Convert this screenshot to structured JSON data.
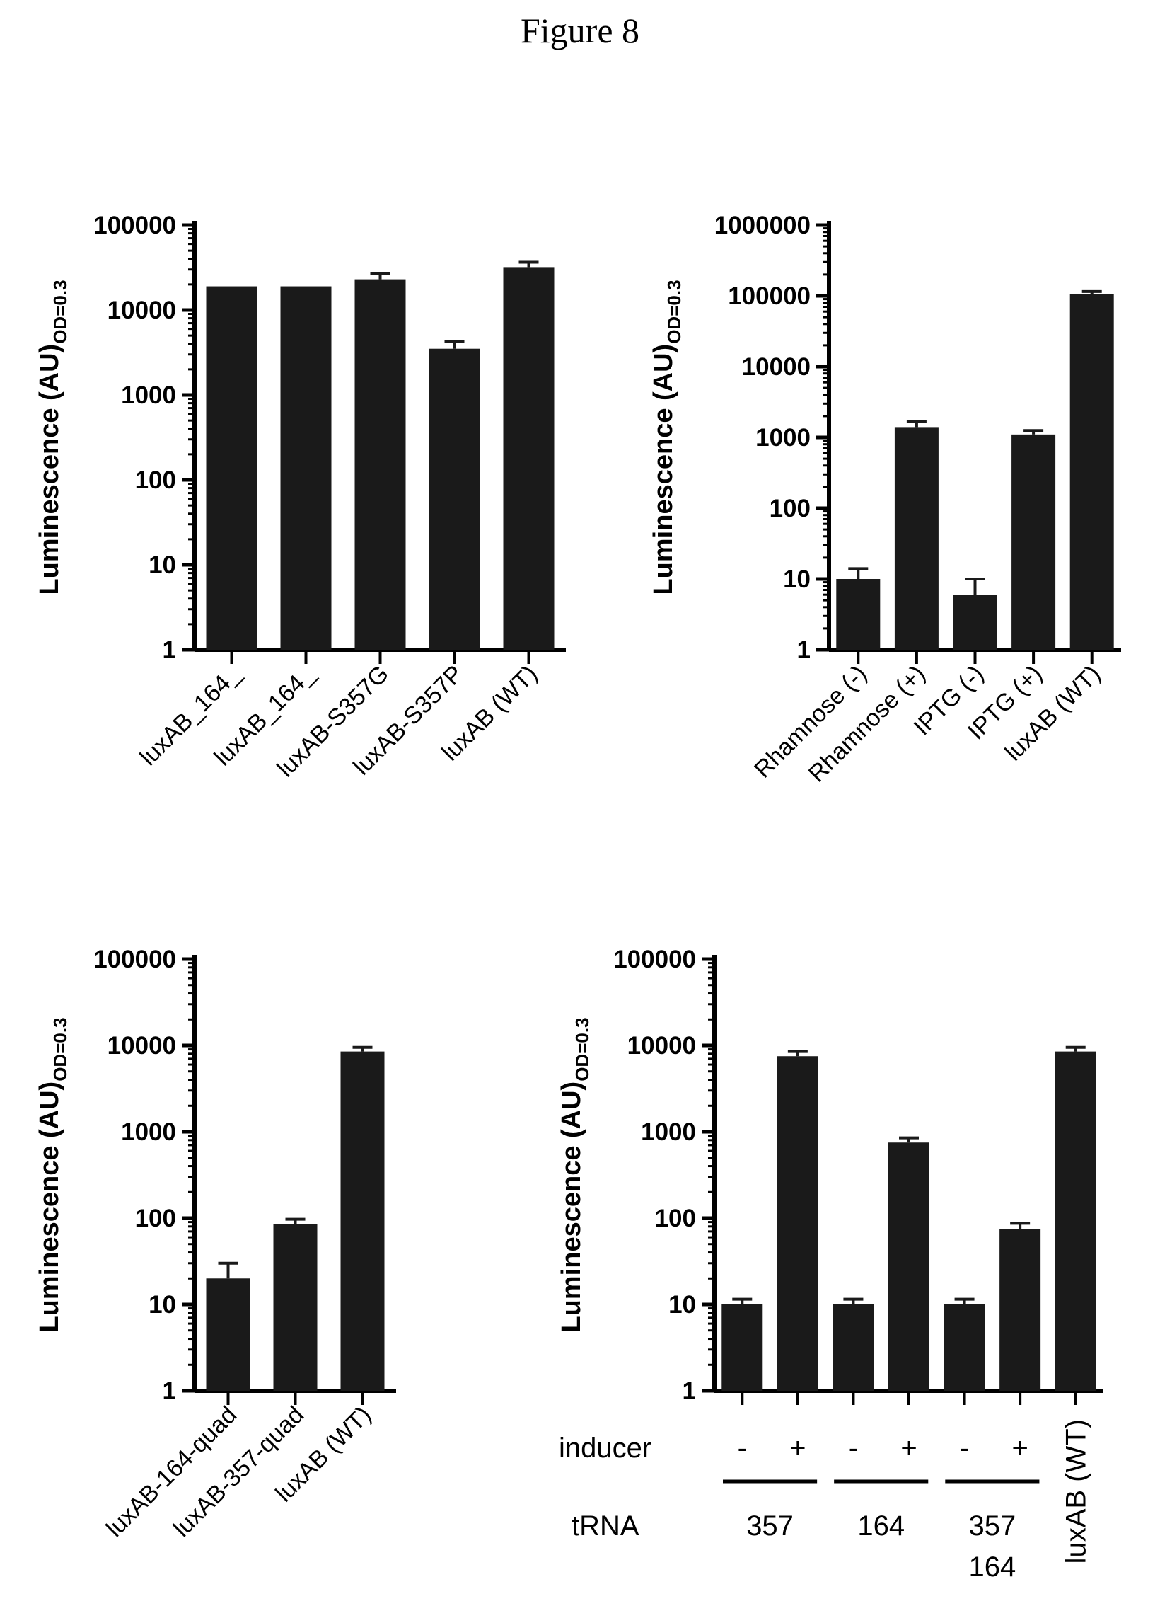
{
  "figure_title": "Figure 8",
  "chart_data": [
    {
      "type": "bar",
      "scale": "log",
      "ylabel": "Luminescence (AU)",
      "ylabel_subscript": "OD=0.3",
      "ylim": [
        1,
        100000
      ],
      "yticks": [
        "1",
        "10",
        "100",
        "1000",
        "10000",
        "100000"
      ],
      "categories": [
        "luxAB_164_",
        "luxAB_164_",
        "luxAB-S357G",
        "luxAB-S357P",
        "luxAB (WT)"
      ],
      "values": [
        19000,
        19000,
        23000,
        3500,
        32000
      ],
      "errors": [
        0,
        0,
        4000,
        800,
        4500
      ],
      "bar_color": "#1a1a1a"
    },
    {
      "type": "bar",
      "scale": "log",
      "ylabel": "Luminescence (AU)",
      "ylabel_subscript": "OD=0.3",
      "ylim": [
        1,
        1000000
      ],
      "yticks": [
        "1",
        "10",
        "100",
        "1000",
        "10000",
        "100000",
        "1000000"
      ],
      "categories": [
        "Rhamnose (-)",
        "Rhamnose (+)",
        "IPTG (-)",
        "IPTG (+)",
        "luxAB (WT)"
      ],
      "values": [
        10,
        1400,
        6,
        1100,
        105000
      ],
      "errors": [
        4,
        300,
        4,
        150,
        10000
      ],
      "bar_color": "#1a1a1a"
    },
    {
      "type": "bar",
      "scale": "log",
      "ylabel": "Luminescence (AU)",
      "ylabel_subscript": "OD=0.3",
      "ylim": [
        1,
        100000
      ],
      "yticks": [
        "1",
        "10",
        "100",
        "1000",
        "10000",
        "100000"
      ],
      "categories": [
        "luxAB-164-quad",
        "luxAB-357-quad",
        "luxAB (WT)"
      ],
      "values": [
        20,
        85,
        8500
      ],
      "errors": [
        10,
        12,
        1000
      ],
      "bar_color": "#1a1a1a"
    },
    {
      "type": "bar",
      "scale": "log",
      "ylabel": "Luminescence (AU)",
      "ylabel_subscript": "OD=0.3",
      "ylim": [
        1,
        100000
      ],
      "yticks": [
        "1",
        "10",
        "100",
        "1000",
        "10000",
        "100000"
      ],
      "inducer_label": "inducer",
      "trna_label": "tRNA",
      "inducer": [
        "-",
        "+",
        "-",
        "+",
        "-",
        "+"
      ],
      "trna_groups": [
        "357",
        "164",
        "357\n164"
      ],
      "wt_label": "luxAB (WT)",
      "values": [
        10,
        7500,
        10,
        750,
        10,
        75,
        8500
      ],
      "errors": [
        1.5,
        1000,
        1.5,
        100,
        1.5,
        12,
        1000
      ],
      "bar_color": "#1a1a1a"
    }
  ]
}
